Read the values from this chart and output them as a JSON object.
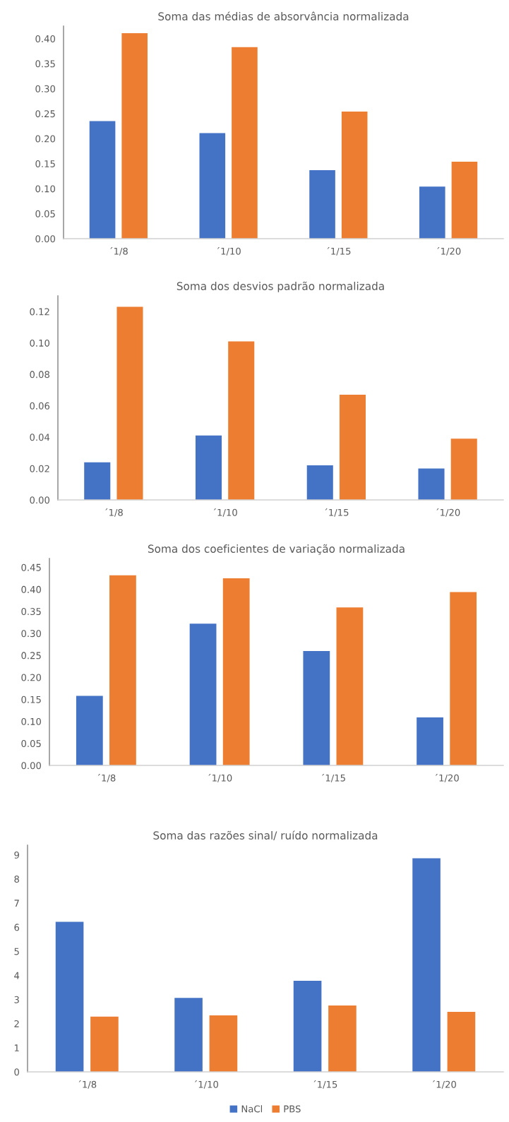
{
  "chart_data": [
    {
      "type": "bar",
      "title": "Soma das médias de absorvância normalizada",
      "categories": [
        "´1/8",
        "´1/10",
        "´1/15",
        "´1/20"
      ],
      "series": [
        {
          "color": "#4472c4",
          "values": [
            0.235,
            0.211,
            0.137,
            0.104
          ]
        },
        {
          "color": "#ed7d31",
          "values": [
            0.411,
            0.383,
            0.254,
            0.154
          ]
        }
      ],
      "ylim": [
        0,
        0.425
      ],
      "yticks": [
        {
          "value": 0,
          "label": "0.00"
        },
        {
          "value": 0.05,
          "label": "0.05"
        },
        {
          "value": 0.1,
          "label": "0.10"
        },
        {
          "value": 0.15,
          "label": "0.15"
        },
        {
          "value": 0.2,
          "label": "0.20"
        },
        {
          "value": 0.25,
          "label": "0.25"
        },
        {
          "value": 0.3,
          "label": "0.30"
        },
        {
          "value": 0.35,
          "label": "0.35"
        },
        {
          "value": 0.4,
          "label": "0.40"
        }
      ]
    },
    {
      "type": "bar",
      "title": "Soma dos desvios padrão normalizada",
      "categories": [
        "´1/8",
        "´1/10",
        "´1/15",
        "´1/20"
      ],
      "series": [
        {
          "color": "#4472c4",
          "values": [
            0.024,
            0.041,
            0.022,
            0.02
          ]
        },
        {
          "color": "#ed7d31",
          "values": [
            0.123,
            0.101,
            0.067,
            0.039
          ]
        }
      ],
      "ylim": [
        0,
        0.13
      ],
      "yticks": [
        {
          "value": 0,
          "label": "0.00"
        },
        {
          "value": 0.02,
          "label": "0.02"
        },
        {
          "value": 0.04,
          "label": "0.04"
        },
        {
          "value": 0.06,
          "label": "0.06"
        },
        {
          "value": 0.08,
          "label": "0.08"
        },
        {
          "value": 0.1,
          "label": "0.10"
        },
        {
          "value": 0.12,
          "label": "0.12"
        }
      ]
    },
    {
      "type": "bar",
      "title": "Soma dos coeficientes de variação normalizada",
      "categories": [
        "´1/8",
        "´1/10",
        "´1/15",
        "´1/20"
      ],
      "series": [
        {
          "color": "#4472c4",
          "values": [
            0.158,
            0.322,
            0.26,
            0.109
          ]
        },
        {
          "color": "#ed7d31",
          "values": [
            0.432,
            0.425,
            0.359,
            0.394
          ]
        }
      ],
      "ylim": [
        0,
        0.47
      ],
      "yticks": [
        {
          "value": 0,
          "label": "0.00"
        },
        {
          "value": 0.05,
          "label": "0.05"
        },
        {
          "value": 0.1,
          "label": "0.10"
        },
        {
          "value": 0.15,
          "label": "0.15"
        },
        {
          "value": 0.2,
          "label": "0.20"
        },
        {
          "value": 0.25,
          "label": "0.25"
        },
        {
          "value": 0.3,
          "label": "0.30"
        },
        {
          "value": 0.35,
          "label": "0.35"
        },
        {
          "value": 0.4,
          "label": "0.40"
        },
        {
          "value": 0.45,
          "label": "0.45"
        }
      ]
    },
    {
      "type": "bar",
      "title": "Soma das razões sinal/ ruído normalizada",
      "categories": [
        "´1/8",
        "´1/10",
        "´1/15",
        "´1/20"
      ],
      "series": [
        {
          "name": "NaCl",
          "color": "#4472c4",
          "values": [
            6.22,
            3.07,
            3.78,
            8.86
          ]
        },
        {
          "name": "PBS",
          "color": "#ed7d31",
          "values": [
            2.29,
            2.34,
            2.75,
            2.49
          ]
        }
      ],
      "ylim": [
        0,
        9.4
      ],
      "yticks": [
        0,
        1,
        2,
        3,
        4,
        5,
        6,
        7,
        8,
        9
      ],
      "legend": "bottom"
    }
  ]
}
